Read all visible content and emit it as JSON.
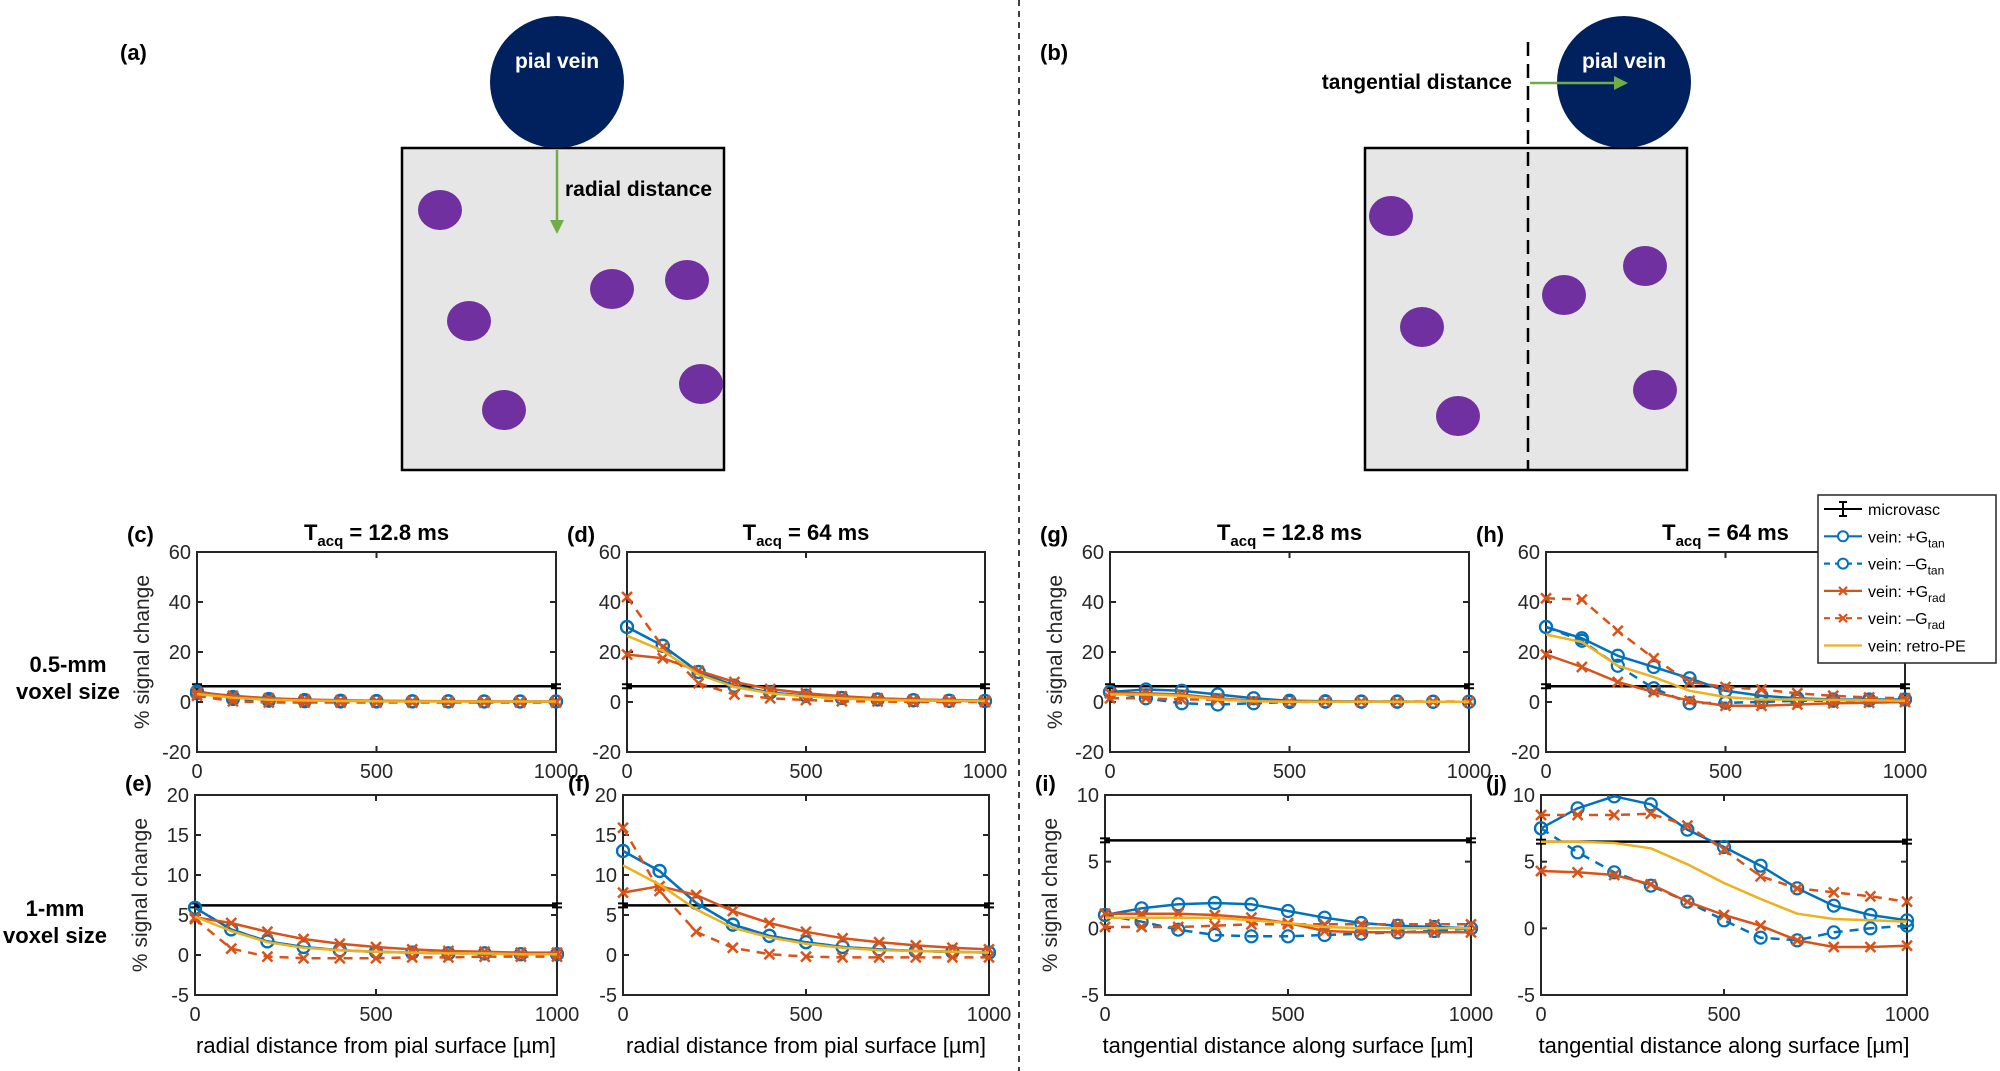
{
  "figure": {
    "divider": "dashed-vertical",
    "colors": {
      "microvasc": "#000000",
      "g_tan": "#0072BD",
      "g_rad": "#D95319",
      "retro_pe": "#EDB120",
      "pial_vein": "#00215E",
      "capillary": "#7030A0",
      "tissue": "#E6E6E6",
      "arrow": "#70AD47"
    }
  },
  "diagrams": [
    {
      "panel": "(a)",
      "vein_label": "pial vein",
      "arrow_label": "radial distance",
      "arrow_direction": "down"
    },
    {
      "panel": "(b)",
      "vein_label": "pial vein",
      "arrow_label": "tangential distance",
      "arrow_direction": "right"
    }
  ],
  "row_labels": [
    {
      "line1": "0.5-mm",
      "line2": "voxel size"
    },
    {
      "line1": "1-mm",
      "line2": "voxel size"
    }
  ],
  "legend": {
    "placement": "top-right",
    "entries": [
      {
        "key": "microvasc",
        "label": "microvasc",
        "sub": ""
      },
      {
        "key": "g_tan_pos",
        "label": "vein: +G",
        "sub": "tan"
      },
      {
        "key": "g_tan_neg",
        "label": "vein: –G",
        "sub": "tan"
      },
      {
        "key": "g_rad_pos",
        "label": "vein: +G",
        "sub": "rad"
      },
      {
        "key": "g_rad_neg",
        "label": "vein: –G",
        "sub": "rad"
      },
      {
        "key": "retro_pe",
        "label": "vein: retro-PE",
        "sub": ""
      }
    ]
  },
  "chart_data": [
    {
      "panel": "(c)",
      "type": "line",
      "title_main": "T",
      "title_sub": "acq",
      "title_rest": " = 12.8 ms",
      "xlabel": "",
      "ylabel": "% signal change",
      "xlim": [
        0,
        1000
      ],
      "ylim": [
        -20,
        60
      ],
      "xticks": [
        0,
        500,
        1000
      ],
      "yticks": [
        -20,
        0,
        20,
        40,
        60
      ],
      "x": [
        0,
        100,
        200,
        300,
        400,
        500,
        600,
        700,
        800,
        900,
        1000
      ],
      "microvasc": 6.3,
      "series": [
        {
          "key": "g_tan_pos",
          "name": "vein: +Gtan",
          "values": [
            4.2,
            2.0,
            1.2,
            0.8,
            0.5,
            0.4,
            0.3,
            0.3,
            0.2,
            0.2,
            0.2
          ]
        },
        {
          "key": "g_tan_neg",
          "name": "vein: –Gtan",
          "values": [
            3.5,
            1.2,
            0.5,
            0.3,
            0.2,
            0.2,
            0.2,
            0.2,
            0.2,
            0.2,
            0.2
          ]
        },
        {
          "key": "g_rad_pos",
          "name": "vein: +Grad",
          "values": [
            3.8,
            2.5,
            1.5,
            1.0,
            0.7,
            0.5,
            0.4,
            0.3,
            0.3,
            0.2,
            0.2
          ]
        },
        {
          "key": "g_rad_neg",
          "name": "vein: –Grad",
          "values": [
            2.5,
            0.3,
            -0.2,
            -0.2,
            -0.2,
            -0.2,
            -0.2,
            -0.2,
            -0.2,
            -0.2,
            -0.2
          ]
        },
        {
          "key": "retro_pe",
          "name": "vein: retro-PE",
          "values": [
            3.2,
            1.7,
            0.9,
            0.6,
            0.4,
            0.3,
            0.2,
            0.2,
            0.2,
            0.2,
            0.2
          ]
        }
      ]
    },
    {
      "panel": "(d)",
      "type": "line",
      "title_main": "T",
      "title_sub": "acq",
      "title_rest": " = 64 ms",
      "xlabel": "",
      "ylabel": "",
      "xlim": [
        0,
        1000
      ],
      "ylim": [
        -20,
        60
      ],
      "xticks": [
        0,
        500,
        1000
      ],
      "yticks": [
        -20,
        0,
        20,
        40,
        60
      ],
      "x": [
        0,
        100,
        200,
        300,
        400,
        500,
        600,
        700,
        800,
        900,
        1000
      ],
      "microvasc": 6.3,
      "series": [
        {
          "key": "g_tan_pos",
          "name": "vein: +Gtan",
          "values": [
            30,
            22.5,
            12,
            6.5,
            3.8,
            2.5,
            1.6,
            1.0,
            0.7,
            0.5,
            0.4
          ]
        },
        {
          "key": "g_tan_neg",
          "name": "vein: –Gtan",
          "values": [
            30,
            22.5,
            12,
            6.5,
            3.8,
            2.5,
            1.6,
            1.0,
            0.7,
            0.5,
            0.4
          ]
        },
        {
          "key": "g_rad_pos",
          "name": "vein: +Grad",
          "values": [
            19,
            17.5,
            12.5,
            8.0,
            5.2,
            3.5,
            2.3,
            1.5,
            1.0,
            0.8,
            0.6
          ]
        },
        {
          "key": "g_rad_neg",
          "name": "vein: –Grad",
          "values": [
            42,
            22,
            7.5,
            3.0,
            1.5,
            0.8,
            0.3,
            0.2,
            0.0,
            0.0,
            0.0
          ]
        },
        {
          "key": "retro_pe",
          "name": "vein: retro-PE",
          "values": [
            26.5,
            20.5,
            11.0,
            6.0,
            3.5,
            2.2,
            1.4,
            0.9,
            0.6,
            0.5,
            0.4
          ]
        }
      ]
    },
    {
      "panel": "(e)",
      "type": "line",
      "title_main": "",
      "title_sub": "",
      "title_rest": "",
      "xlabel": "radial distance from pial surface  [µm]",
      "ylabel": "% signal change",
      "xlim": [
        0,
        1000
      ],
      "ylim": [
        -5,
        20
      ],
      "xticks": [
        0,
        500,
        1000
      ],
      "yticks": [
        -5,
        0,
        5,
        10,
        15,
        20
      ],
      "x": [
        0,
        100,
        200,
        300,
        400,
        500,
        600,
        700,
        800,
        900,
        1000
      ],
      "microvasc": 6.2,
      "series": [
        {
          "key": "g_tan_pos",
          "name": "vein: +Gtan",
          "values": [
            5.9,
            3.2,
            1.7,
            1.0,
            0.6,
            0.4,
            0.3,
            0.2,
            0.2,
            0.1,
            0.1
          ]
        },
        {
          "key": "g_tan_neg",
          "name": "vein: –Gtan",
          "values": [
            5.9,
            3.2,
            1.7,
            1.0,
            0.6,
            0.4,
            0.3,
            0.2,
            0.2,
            0.1,
            0.1
          ]
        },
        {
          "key": "g_rad_pos",
          "name": "vein: +Grad",
          "values": [
            4.7,
            4.0,
            2.9,
            2.0,
            1.4,
            1.0,
            0.7,
            0.5,
            0.4,
            0.3,
            0.3
          ]
        },
        {
          "key": "g_rad_neg",
          "name": "vein: –Grad",
          "values": [
            4.5,
            0.8,
            -0.2,
            -0.4,
            -0.4,
            -0.4,
            -0.3,
            -0.3,
            -0.2,
            -0.2,
            -0.2
          ]
        },
        {
          "key": "retro_pe",
          "name": "vein: retro-PE",
          "values": [
            4.8,
            3.0,
            1.6,
            0.9,
            0.6,
            0.4,
            0.3,
            0.2,
            0.2,
            0.1,
            0.1
          ]
        }
      ]
    },
    {
      "panel": "(f)",
      "type": "line",
      "title_main": "",
      "title_sub": "",
      "title_rest": "",
      "xlabel": "radial distance from pial surface  [µm]",
      "ylabel": "",
      "xlim": [
        0,
        1000
      ],
      "ylim": [
        -5,
        20
      ],
      "xticks": [
        0,
        500,
        1000
      ],
      "yticks": [
        -5,
        0,
        5,
        10,
        15,
        20
      ],
      "x": [
        0,
        100,
        200,
        300,
        400,
        500,
        600,
        700,
        800,
        900,
        1000
      ],
      "microvasc": 6.2,
      "series": [
        {
          "key": "g_tan_pos",
          "name": "vein: +Gtan",
          "values": [
            13.0,
            10.5,
            6.5,
            3.8,
            2.4,
            1.6,
            1.0,
            0.7,
            0.5,
            0.4,
            0.3
          ]
        },
        {
          "key": "g_tan_neg",
          "name": "vein: –Gtan",
          "values": [
            13.0,
            10.5,
            6.5,
            3.8,
            2.4,
            1.6,
            1.0,
            0.7,
            0.5,
            0.4,
            0.3
          ]
        },
        {
          "key": "g_rad_pos",
          "name": "vein: +Grad",
          "values": [
            7.8,
            8.6,
            7.5,
            5.5,
            4.0,
            2.9,
            2.1,
            1.6,
            1.2,
            0.9,
            0.7
          ]
        },
        {
          "key": "g_rad_neg",
          "name": "vein: –Grad",
          "values": [
            15.9,
            8.0,
            2.9,
            0.9,
            0.1,
            -0.2,
            -0.3,
            -0.3,
            -0.3,
            -0.3,
            -0.3
          ]
        },
        {
          "key": "retro_pe",
          "name": "vein: retro-PE",
          "values": [
            11.2,
            8.8,
            5.7,
            3.4,
            2.2,
            1.4,
            0.9,
            0.6,
            0.5,
            0.4,
            0.3
          ]
        }
      ]
    },
    {
      "panel": "(g)",
      "type": "line",
      "title_main": "T",
      "title_sub": "acq",
      "title_rest": " = 12.8 ms",
      "xlabel": "",
      "ylabel": "% signal change",
      "xlim": [
        0,
        1000
      ],
      "ylim": [
        -20,
        60
      ],
      "xticks": [
        0,
        500,
        1000
      ],
      "yticks": [
        -20,
        0,
        20,
        40,
        60
      ],
      "x": [
        0,
        100,
        200,
        300,
        400,
        500,
        600,
        700,
        800,
        900,
        1000
      ],
      "microvasc": 6.3,
      "series": [
        {
          "key": "g_tan_pos",
          "name": "vein: +Gtan",
          "values": [
            4.0,
            5.0,
            4.5,
            3.0,
            1.5,
            0.5,
            0.3,
            0.2,
            0.2,
            0.1,
            0.1
          ]
        },
        {
          "key": "g_tan_neg",
          "name": "vein: –Gtan",
          "values": [
            4.0,
            1.5,
            -0.5,
            -1.0,
            -0.5,
            0.0,
            0.1,
            0.1,
            0.1,
            0.1,
            0.1
          ]
        },
        {
          "key": "g_rad_pos",
          "name": "vein: +Grad",
          "values": [
            3.5,
            3.5,
            3.0,
            1.5,
            0.5,
            0.2,
            0.1,
            0.1,
            0.1,
            0.1,
            0.1
          ]
        },
        {
          "key": "g_rad_neg",
          "name": "vein: –Grad",
          "values": [
            1.5,
            1.5,
            1.0,
            1.0,
            0.5,
            0.2,
            0.2,
            0.2,
            0.2,
            0.2,
            0.2
          ]
        },
        {
          "key": "retro_pe",
          "name": "vein: retro-PE",
          "values": [
            3.0,
            3.0,
            2.5,
            1.0,
            0.3,
            0.1,
            0.1,
            0.1,
            0.1,
            0.1,
            0.1
          ]
        }
      ]
    },
    {
      "panel": "(h)",
      "type": "line",
      "title_main": "T",
      "title_sub": "acq",
      "title_rest": " = 64 ms",
      "xlabel": "",
      "ylabel": "",
      "xlim": [
        0,
        1000
      ],
      "ylim": [
        -20,
        60
      ],
      "xticks": [
        0,
        500,
        1000
      ],
      "yticks": [
        -20,
        0,
        20,
        40,
        60
      ],
      "x": [
        0,
        100,
        200,
        300,
        400,
        500,
        600,
        700,
        800,
        900,
        1000
      ],
      "microvasc": 6.3,
      "series": [
        {
          "key": "g_tan_pos",
          "name": "vein: +Gtan",
          "values": [
            30,
            25.5,
            18.5,
            14.0,
            9.5,
            4.5,
            2.5,
            1.5,
            1.0,
            1.0,
            1.0
          ]
        },
        {
          "key": "g_tan_neg",
          "name": "vein: –Gtan",
          "values": [
            30,
            24.5,
            14.5,
            5.5,
            -0.5,
            -0.3,
            0.0,
            0.5,
            0.5,
            0.7,
            1.0
          ]
        },
        {
          "key": "g_rad_pos",
          "name": "vein: +Grad",
          "values": [
            19.0,
            14.0,
            8.0,
            4.0,
            0.5,
            -1.5,
            -1.5,
            -1.0,
            -0.5,
            -0.3,
            0.0
          ]
        },
        {
          "key": "g_rad_neg",
          "name": "vein: –Grad",
          "values": [
            41.5,
            41.0,
            28.5,
            17.5,
            8.0,
            6.0,
            5.0,
            3.5,
            2.5,
            1.8,
            1.5
          ]
        },
        {
          "key": "retro_pe",
          "name": "vein: retro-PE",
          "values": [
            27.0,
            24.0,
            14.5,
            10.0,
            4.5,
            2.0,
            1.0,
            1.0,
            0.8,
            0.7,
            0.5
          ]
        }
      ]
    },
    {
      "panel": "(i)",
      "type": "line",
      "title_main": "",
      "title_sub": "",
      "title_rest": "",
      "xlabel": "tangential distance along surface  [µm]",
      "ylabel": "% signal change",
      "xlim": [
        0,
        1000
      ],
      "ylim": [
        -5,
        10
      ],
      "xticks": [
        0,
        500,
        1000
      ],
      "yticks": [
        -5,
        0,
        5,
        10
      ],
      "x": [
        0,
        100,
        200,
        300,
        400,
        500,
        600,
        700,
        800,
        900,
        1000
      ],
      "microvasc": 6.6,
      "series": [
        {
          "key": "g_tan_pos",
          "name": "vein: +Gtan",
          "values": [
            1.0,
            1.5,
            1.8,
            1.9,
            1.8,
            1.3,
            0.8,
            0.4,
            0.2,
            0.1,
            0.0
          ]
        },
        {
          "key": "g_tan_neg",
          "name": "vein: –Gtan",
          "values": [
            1.0,
            0.5,
            -0.1,
            -0.5,
            -0.6,
            -0.6,
            -0.5,
            -0.4,
            -0.3,
            -0.2,
            0.0
          ]
        },
        {
          "key": "g_rad_pos",
          "name": "vein: +Grad",
          "values": [
            1.1,
            1.1,
            1.1,
            1.0,
            0.8,
            0.4,
            -0.2,
            -0.3,
            -0.3,
            -0.3,
            -0.3
          ]
        },
        {
          "key": "g_rad_neg",
          "name": "vein: –Grad",
          "values": [
            0.1,
            0.1,
            0.1,
            0.2,
            0.3,
            0.3,
            0.3,
            0.3,
            0.3,
            0.3,
            0.3
          ]
        },
        {
          "key": "retro_pe",
          "name": "vein: retro-PE",
          "values": [
            0.8,
            0.8,
            0.8,
            0.8,
            0.6,
            0.4,
            0.1,
            0.0,
            0.0,
            0.0,
            0.0
          ]
        }
      ]
    },
    {
      "panel": "(j)",
      "type": "line",
      "title_main": "",
      "title_sub": "",
      "title_rest": "",
      "xlabel": "tangential distance along surface  [µm]",
      "ylabel": "",
      "xlim": [
        0,
        1000
      ],
      "ylim": [
        -5,
        10
      ],
      "xticks": [
        0,
        500,
        1000
      ],
      "yticks": [
        -5,
        0,
        5,
        10
      ],
      "x": [
        0,
        100,
        200,
        300,
        400,
        500,
        600,
        700,
        800,
        900,
        1000
      ],
      "microvasc": 6.5,
      "series": [
        {
          "key": "g_tan_pos",
          "name": "vein: +Gtan",
          "values": [
            7.5,
            9.0,
            9.9,
            9.3,
            7.4,
            6.1,
            4.7,
            3.0,
            1.7,
            1.0,
            0.6
          ]
        },
        {
          "key": "g_tan_neg",
          "name": "vein: –Gtan",
          "values": [
            7.5,
            5.7,
            4.2,
            3.2,
            2.0,
            0.6,
            -0.7,
            -0.9,
            -0.3,
            0.0,
            0.2
          ]
        },
        {
          "key": "g_rad_pos",
          "name": "vein: +Grad",
          "values": [
            4.3,
            4.2,
            4.0,
            3.3,
            2.0,
            1.0,
            0.2,
            -0.9,
            -1.4,
            -1.4,
            -1.3
          ]
        },
        {
          "key": "g_rad_neg",
          "name": "vein: –Grad",
          "values": [
            8.5,
            8.5,
            8.5,
            8.6,
            7.7,
            5.9,
            3.9,
            3.0,
            2.7,
            2.4,
            2.0
          ]
        },
        {
          "key": "retro_pe",
          "name": "vein: retro-PE",
          "values": [
            6.5,
            6.5,
            6.4,
            6.0,
            4.8,
            3.4,
            2.2,
            1.1,
            0.7,
            0.6,
            0.5
          ]
        }
      ]
    }
  ]
}
